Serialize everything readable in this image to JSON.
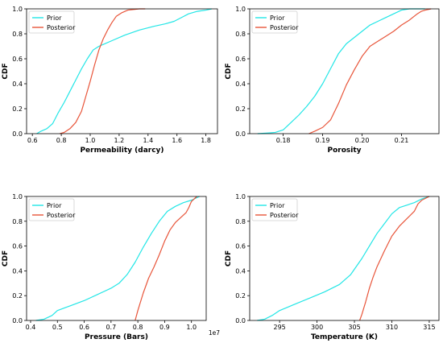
{
  "colors": {
    "prior": "#22e6e6",
    "posterior": "#e8553a"
  },
  "chart_data": [
    {
      "type": "line",
      "xlabel": "Permeability (darcy)",
      "ylabel": "CDF",
      "xlim": [
        0.56,
        1.88
      ],
      "ylim": [
        0,
        1.0
      ],
      "xticks": [
        0.6,
        0.8,
        1.0,
        1.2,
        1.4,
        1.6,
        1.8
      ],
      "xtick_labels": [
        "0.6",
        "0.8",
        "1.0",
        "1.2",
        "1.4",
        "1.6",
        "1.8"
      ],
      "yticks": [
        0.0,
        0.2,
        0.4,
        0.6,
        0.8,
        1.0
      ],
      "ytick_labels": [
        "0.0",
        "0.2",
        "0.4",
        "0.6",
        "0.8",
        "1.0"
      ],
      "offset_text": "",
      "legend_position": "top-left",
      "series": [
        {
          "name": "Prior",
          "x": [
            0.63,
            0.66,
            0.7,
            0.74,
            0.78,
            0.82,
            0.86,
            0.9,
            0.94,
            0.98,
            1.02,
            1.06,
            1.1,
            1.16,
            1.24,
            1.34,
            1.44,
            1.52,
            1.58,
            1.63,
            1.68,
            1.74,
            1.8,
            1.84
          ],
          "y": [
            0.0,
            0.02,
            0.04,
            0.08,
            0.17,
            0.25,
            0.34,
            0.43,
            0.52,
            0.6,
            0.67,
            0.7,
            0.72,
            0.75,
            0.79,
            0.83,
            0.86,
            0.88,
            0.9,
            0.93,
            0.96,
            0.98,
            0.99,
            1.0
          ]
        },
        {
          "name": "Posterior",
          "x": [
            0.79,
            0.82,
            0.86,
            0.9,
            0.94,
            0.97,
            1.0,
            1.03,
            1.06,
            1.09,
            1.12,
            1.15,
            1.18,
            1.22,
            1.26,
            1.3,
            1.34,
            1.38
          ],
          "y": [
            0.0,
            0.01,
            0.04,
            0.09,
            0.18,
            0.3,
            0.42,
            0.55,
            0.67,
            0.76,
            0.83,
            0.89,
            0.94,
            0.97,
            0.99,
            0.995,
            1.0,
            1.0
          ]
        }
      ]
    },
    {
      "type": "line",
      "xlabel": "Porosity",
      "ylabel": "CDF",
      "xlim": [
        0.1715,
        0.2195
      ],
      "ylim": [
        0,
        1.0
      ],
      "xticks": [
        0.18,
        0.19,
        0.2,
        0.21
      ],
      "xtick_labels": [
        "0.18",
        "0.19",
        "0.20",
        "0.21"
      ],
      "yticks": [
        0.0,
        0.2,
        0.4,
        0.6,
        0.8,
        1.0
      ],
      "ytick_labels": [
        "0.0",
        "0.2",
        "0.4",
        "0.6",
        "0.8",
        "1.0"
      ],
      "offset_text": "",
      "legend_position": "top-left",
      "series": [
        {
          "name": "Prior",
          "x": [
            0.1735,
            0.176,
            0.178,
            0.18,
            0.182,
            0.184,
            0.186,
            0.188,
            0.19,
            0.192,
            0.194,
            0.196,
            0.198,
            0.2,
            0.202,
            0.204,
            0.206,
            0.208,
            0.21,
            0.212,
            0.214,
            0.216
          ],
          "y": [
            0.0,
            0.005,
            0.01,
            0.03,
            0.09,
            0.15,
            0.22,
            0.3,
            0.4,
            0.52,
            0.64,
            0.72,
            0.77,
            0.82,
            0.87,
            0.9,
            0.93,
            0.96,
            0.99,
            1.0,
            1.0,
            1.0
          ]
        },
        {
          "name": "Posterior",
          "x": [
            0.1865,
            0.188,
            0.19,
            0.192,
            0.194,
            0.196,
            0.198,
            0.2,
            0.202,
            0.204,
            0.206,
            0.208,
            0.21,
            0.212,
            0.214,
            0.215,
            0.216,
            0.2175
          ],
          "y": [
            0.0,
            0.02,
            0.05,
            0.11,
            0.24,
            0.39,
            0.51,
            0.62,
            0.7,
            0.74,
            0.78,
            0.82,
            0.87,
            0.91,
            0.96,
            0.98,
            0.99,
            1.0
          ]
        }
      ]
    },
    {
      "type": "line",
      "xlabel": "Pressure (Bars)",
      "ylabel": "CDF",
      "xlim": [
        0.385,
        1.055
      ],
      "ylim": [
        0,
        1.0
      ],
      "xticks": [
        0.4,
        0.5,
        0.6,
        0.7,
        0.8,
        0.9,
        1.0
      ],
      "xtick_labels": [
        "0.4",
        "0.5",
        "0.6",
        "0.7",
        "0.8",
        "0.9",
        "1.0"
      ],
      "yticks": [
        0.0,
        0.2,
        0.4,
        0.6,
        0.8,
        1.0
      ],
      "ytick_labels": [
        "0.0",
        "0.2",
        "0.4",
        "0.6",
        "0.8",
        "1.0"
      ],
      "offset_text": "1e7",
      "legend_position": "top-left",
      "series": [
        {
          "name": "Prior",
          "x": [
            0.42,
            0.45,
            0.48,
            0.5,
            0.55,
            0.6,
            0.65,
            0.7,
            0.73,
            0.76,
            0.79,
            0.82,
            0.85,
            0.88,
            0.91,
            0.94,
            0.97,
            1.0,
            1.03
          ],
          "y": [
            0.0,
            0.01,
            0.04,
            0.08,
            0.12,
            0.16,
            0.21,
            0.26,
            0.3,
            0.37,
            0.47,
            0.59,
            0.7,
            0.8,
            0.88,
            0.92,
            0.95,
            0.97,
            1.0
          ]
        },
        {
          "name": "Posterior",
          "x": [
            0.79,
            0.8,
            0.82,
            0.84,
            0.86,
            0.88,
            0.9,
            0.92,
            0.94,
            0.96,
            0.98,
            0.99,
            1.0,
            1.02
          ],
          "y": [
            0.0,
            0.08,
            0.22,
            0.34,
            0.43,
            0.53,
            0.64,
            0.73,
            0.79,
            0.83,
            0.87,
            0.91,
            0.96,
            1.0
          ]
        }
      ]
    },
    {
      "type": "line",
      "xlabel": "Temperature (K)",
      "ylabel": "CDF",
      "xlim": [
        291.0,
        316.3
      ],
      "ylim": [
        0,
        1.0
      ],
      "xticks": [
        295,
        300,
        305,
        310,
        315
      ],
      "xtick_labels": [
        "295",
        "300",
        "305",
        "310",
        "315"
      ],
      "yticks": [
        0.0,
        0.2,
        0.4,
        0.6,
        0.8,
        1.0
      ],
      "ytick_labels": [
        "0.0",
        "0.2",
        "0.4",
        "0.6",
        "0.8",
        "1.0"
      ],
      "offset_text": "",
      "legend_position": "top-left",
      "series": [
        {
          "name": "Prior",
          "x": [
            292.0,
            293.0,
            294.0,
            295.0,
            297.0,
            299.0,
            301.0,
            303.0,
            304.5,
            306.0,
            307.0,
            308.0,
            309.0,
            310.0,
            311.0,
            312.0,
            313.0,
            314.0,
            315.0
          ],
          "y": [
            0.0,
            0.01,
            0.04,
            0.08,
            0.13,
            0.18,
            0.23,
            0.29,
            0.37,
            0.5,
            0.6,
            0.7,
            0.78,
            0.86,
            0.91,
            0.93,
            0.95,
            0.98,
            1.0
          ]
        },
        {
          "name": "Posterior",
          "x": [
            305.7,
            306.0,
            306.5,
            307.0,
            307.5,
            308.0,
            309.0,
            310.0,
            311.0,
            312.0,
            313.0,
            313.5,
            314.0,
            315.0
          ],
          "y": [
            0.0,
            0.05,
            0.15,
            0.26,
            0.35,
            0.43,
            0.56,
            0.68,
            0.76,
            0.82,
            0.88,
            0.94,
            0.97,
            1.0
          ]
        }
      ]
    }
  ]
}
